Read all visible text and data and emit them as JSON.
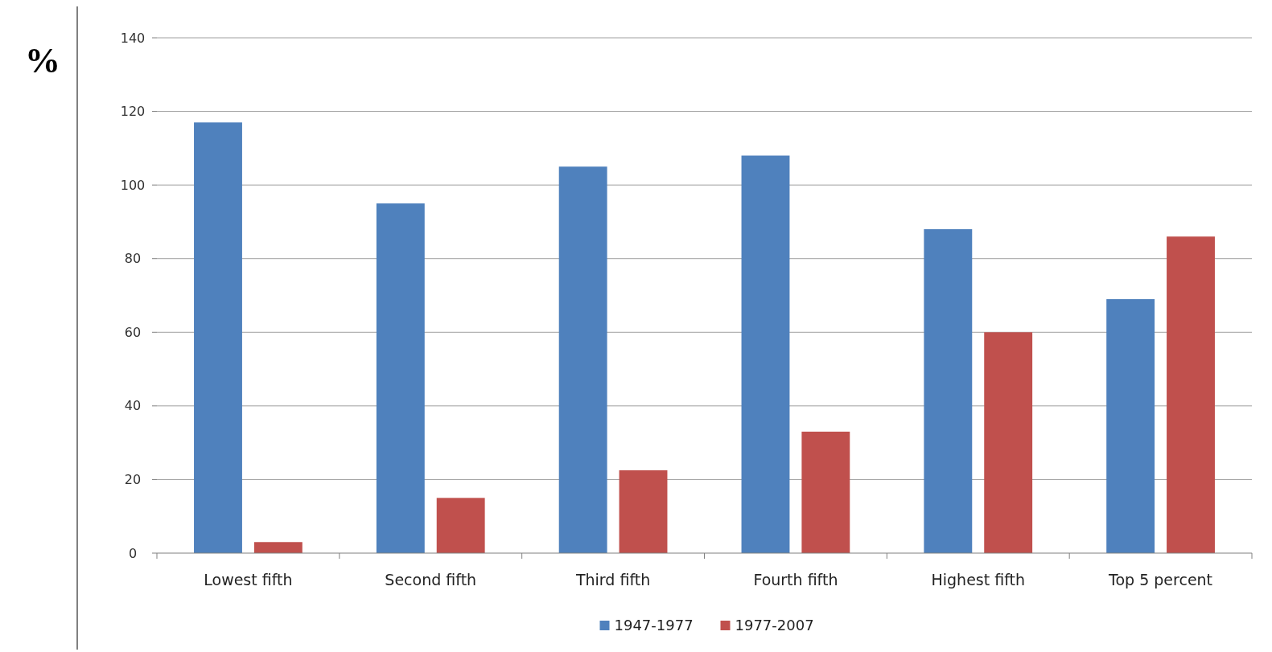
{
  "chart_data": {
    "type": "bar",
    "ylabel": "%",
    "categories": [
      "Lowest fifth",
      "Second fifth",
      "Third fifth",
      "Fourth fifth",
      "Highest fifth",
      "Top 5 percent"
    ],
    "series": [
      {
        "name": "1947-1977",
        "color": "#4f81bd",
        "values": [
          117,
          95,
          105,
          108,
          88,
          69
        ]
      },
      {
        "name": "1977-2007",
        "color": "#c0504d",
        "values": [
          3,
          15,
          22.5,
          33,
          60,
          86
        ]
      }
    ],
    "ylim": [
      0,
      140
    ],
    "yticks": [
      0,
      20,
      40,
      60,
      80,
      100,
      120,
      140
    ],
    "grid": "y",
    "legend": "bottom"
  }
}
